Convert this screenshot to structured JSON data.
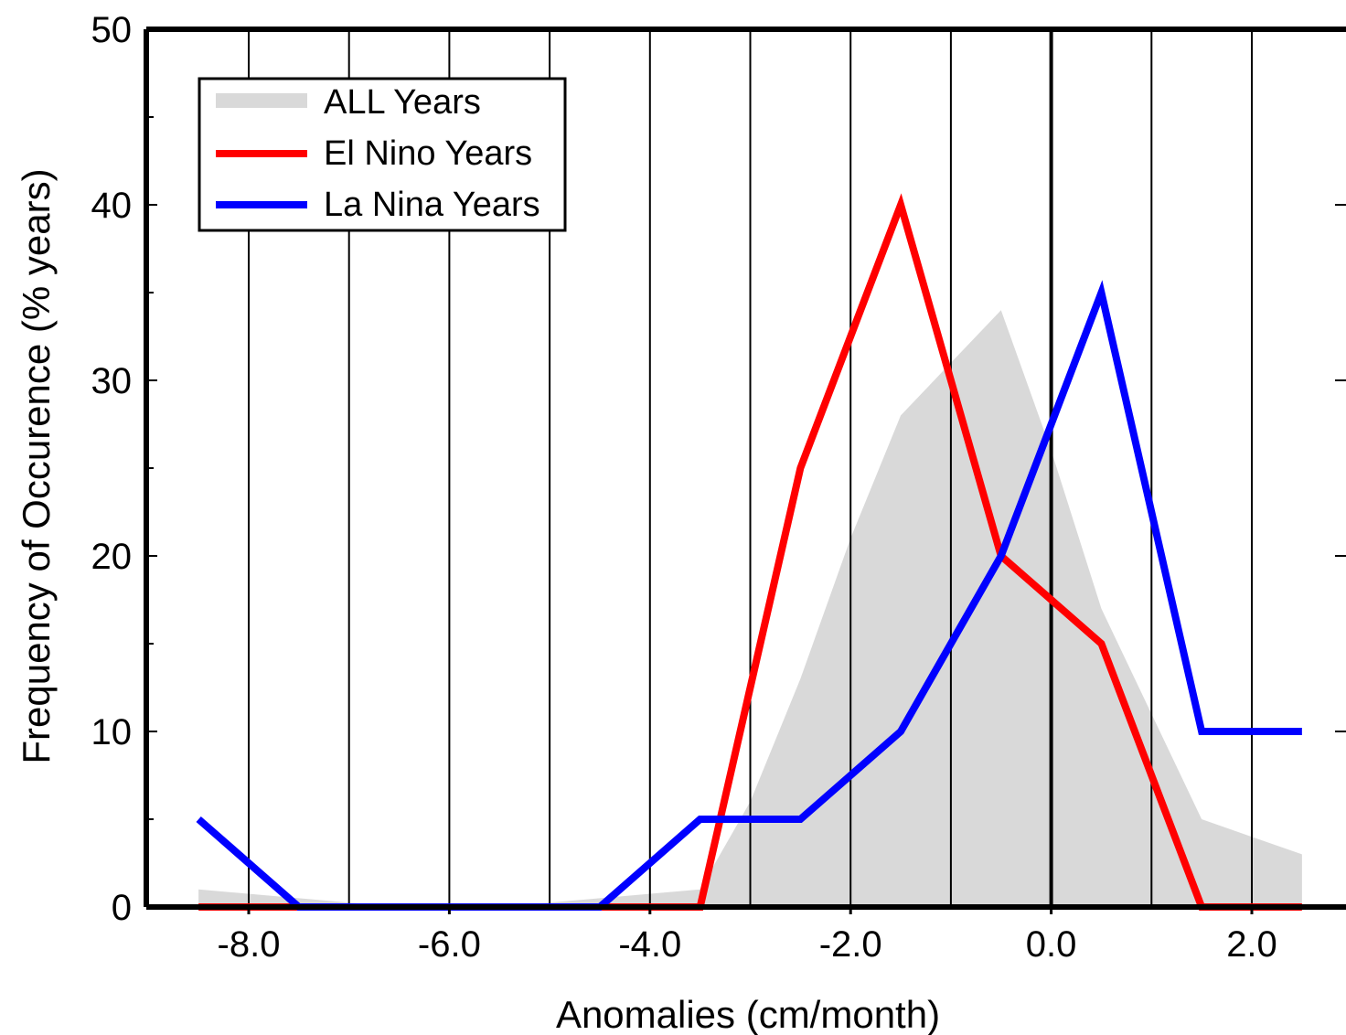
{
  "chart_data": {
    "type": "line",
    "title": "",
    "xlabel": "Anomalies  (cm/month)",
    "ylabel": "Frequency of Occurence  (% years)",
    "xlim": [
      -9.0,
      2.8
    ],
    "ylim": [
      0,
      50
    ],
    "x_ticks": [
      -8.0,
      -6.0,
      -4.0,
      -2.0,
      0.0,
      2.0
    ],
    "x_tick_labels": [
      "-8.0",
      "-6.0",
      "-4.0",
      "-2.0",
      "0.0",
      "2.0"
    ],
    "y_ticks": [
      0,
      10,
      20,
      30,
      40,
      50
    ],
    "y_tick_labels": [
      "0",
      "10",
      "20",
      "30",
      "40",
      "50"
    ],
    "grid_x": [
      -8.0,
      -7.0,
      -6.0,
      -5.0,
      -4.0,
      -3.0,
      -2.0,
      -1.0,
      0.0,
      1.0,
      2.0
    ],
    "legend_position": "top-left",
    "series": [
      {
        "name": "ALL Years",
        "style": "area",
        "color": "#d9d9d9",
        "x": [
          -8.5,
          -7.5,
          -6.5,
          -5.5,
          -4.5,
          -3.5,
          -3.0,
          -2.5,
          -2.0,
          -1.5,
          -1.0,
          -0.5,
          0.0,
          0.5,
          1.0,
          1.5,
          2.0,
          2.5
        ],
        "y": [
          1,
          0.5,
          0,
          0,
          0.5,
          1,
          6,
          13,
          21,
          28,
          31,
          34,
          26,
          17,
          11,
          5,
          4,
          3
        ]
      },
      {
        "name": "El Nino Years",
        "style": "line",
        "color": "#ff0000",
        "x": [
          -8.5,
          -7.5,
          -6.5,
          -5.5,
          -4.5,
          -3.5,
          -2.5,
          -1.5,
          -0.5,
          0.5,
          1.5,
          2.5
        ],
        "y": [
          0,
          0,
          0,
          0,
          0,
          0,
          25,
          40,
          20,
          15,
          0,
          0
        ]
      },
      {
        "name": "La Nina Years",
        "style": "line",
        "color": "#0000ff",
        "x": [
          -8.5,
          -7.5,
          -6.5,
          -5.5,
          -4.5,
          -3.5,
          -2.5,
          -1.5,
          -0.5,
          0.5,
          1.5,
          2.5
        ],
        "y": [
          5,
          0,
          0,
          0,
          0,
          5,
          5,
          10,
          20,
          35,
          10,
          10
        ]
      }
    ]
  }
}
